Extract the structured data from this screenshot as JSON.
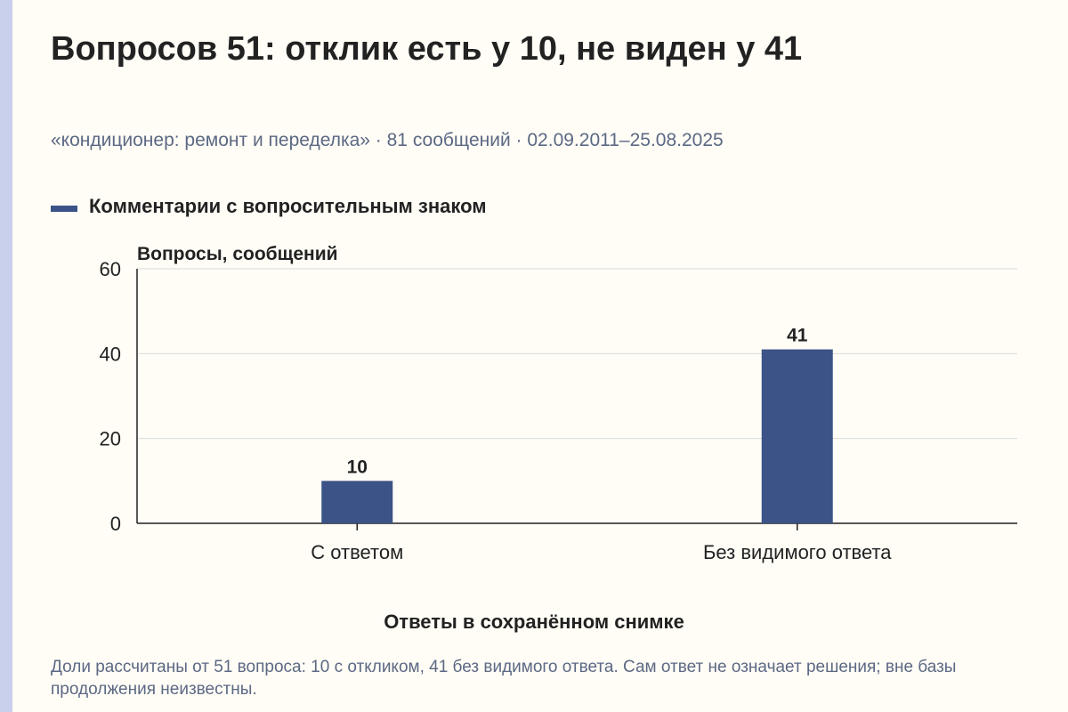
{
  "title": "Вопросов 51: отклик есть у 10, не виден у 41",
  "subtitle": "«кондиционер: ремонт и переделка» · 81 сообщений · 02.09.2011–25.08.2025",
  "note": "Доли рассчитаны от 51 вопроса: 10 с откликом, 41 без видимого ответа. Сам ответ не означает решения; вне базы продолжения неизвестны.",
  "colors": {
    "background": "#fffdf6",
    "accent_strip": "#c9d0ec",
    "bar": "#3c5387",
    "muted_text": "#5c6884",
    "grid": "#d9d9d9",
    "axis": "#222222"
  },
  "chart_data": {
    "type": "bar",
    "title": "Вопросов 51: отклик есть у 10, не виден у 41",
    "categories": [
      "С ответом",
      "Без видимого ответа"
    ],
    "series": [
      {
        "name": "Комментарии с вопросительным знаком",
        "values": [
          10,
          41
        ]
      }
    ],
    "data_labels": [
      "10",
      "41"
    ],
    "xlabel": "Ответы в сохранённом снимке",
    "ylabel": "Вопросы, сообщений",
    "ylim": [
      0,
      60
    ],
    "yticks": [
      0,
      20,
      40,
      60
    ],
    "ytick_labels": [
      "0",
      "20",
      "40",
      "60"
    ],
    "grid": true,
    "legend_position": "top-left"
  }
}
